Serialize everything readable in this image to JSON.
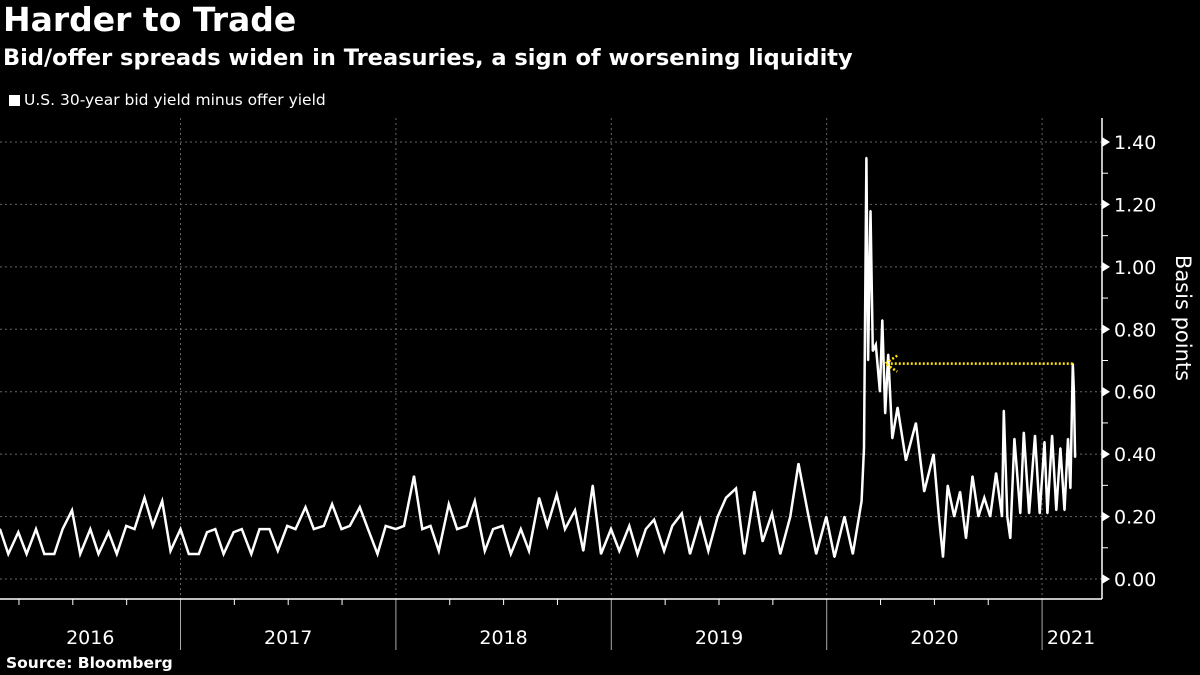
{
  "chart_data": {
    "type": "line",
    "title": "Harder to Trade",
    "subtitle": "Bid/offer spreads widen in Treasuries, a sign of worsening liquidity",
    "legend": [
      "U.S. 30-year bid yield minus offer yield"
    ],
    "legend_placement": "top-left",
    "ylabel": "Basis points",
    "ylim": [
      0,
      1.4
    ],
    "yticks": [
      "0.00",
      "0.20",
      "0.40",
      "0.60",
      "0.80",
      "1.00",
      "1.20",
      "1.40"
    ],
    "xticks": [
      "2016",
      "2017",
      "2018",
      "2019",
      "2020",
      "2021"
    ],
    "xlim": [
      "2016-02-28",
      "2021-03-15"
    ],
    "grid": true,
    "y_axis_side": "right",
    "colors": {
      "background": "#000000",
      "line": "#ffffff",
      "annotation": "#ffe600",
      "grid": "#666666"
    },
    "series": [
      {
        "name": "U.S. 30-year bid yield minus offer yield",
        "dates": [
          "2016-03-01",
          "2016-03-15",
          "2016-04-01",
          "2016-04-15",
          "2016-05-01",
          "2016-05-15",
          "2016-06-01",
          "2016-06-15",
          "2016-07-01",
          "2016-07-15",
          "2016-08-01",
          "2016-08-15",
          "2016-09-01",
          "2016-09-15",
          "2016-10-01",
          "2016-10-15",
          "2016-11-01",
          "2016-11-15",
          "2016-12-01",
          "2016-12-15",
          "2017-01-01",
          "2017-01-15",
          "2017-02-01",
          "2017-02-15",
          "2017-03-01",
          "2017-03-15",
          "2017-04-01",
          "2017-04-15",
          "2017-05-01",
          "2017-05-15",
          "2017-06-01",
          "2017-06-15",
          "2017-07-01",
          "2017-07-15",
          "2017-08-01",
          "2017-08-15",
          "2017-09-01",
          "2017-09-15",
          "2017-10-01",
          "2017-10-15",
          "2017-11-01",
          "2017-11-15",
          "2017-12-01",
          "2017-12-15",
          "2018-01-01",
          "2018-01-15",
          "2018-02-01",
          "2018-02-15",
          "2018-03-01",
          "2018-03-15",
          "2018-04-01",
          "2018-04-15",
          "2018-05-01",
          "2018-05-15",
          "2018-06-01",
          "2018-06-15",
          "2018-07-01",
          "2018-07-15",
          "2018-08-01",
          "2018-08-15",
          "2018-09-01",
          "2018-09-15",
          "2018-10-01",
          "2018-10-15",
          "2018-11-01",
          "2018-11-15",
          "2018-12-01",
          "2018-12-15",
          "2019-01-01",
          "2019-01-15",
          "2019-02-01",
          "2019-02-15",
          "2019-03-01",
          "2019-03-15",
          "2019-04-01",
          "2019-04-15",
          "2019-05-01",
          "2019-05-15",
          "2019-06-01",
          "2019-06-15",
          "2019-07-01",
          "2019-07-15",
          "2019-08-01",
          "2019-08-15",
          "2019-09-01",
          "2019-09-15",
          "2019-10-01",
          "2019-10-15",
          "2019-11-01",
          "2019-11-15",
          "2019-12-01",
          "2019-12-15",
          "2020-01-01",
          "2020-01-15",
          "2020-02-01",
          "2020-02-15",
          "2020-03-01",
          "2020-03-05",
          "2020-03-09",
          "2020-03-12",
          "2020-03-16",
          "2020-03-20",
          "2020-03-25",
          "2020-04-01",
          "2020-04-05",
          "2020-04-10",
          "2020-04-15",
          "2020-04-22",
          "2020-05-01",
          "2020-05-15",
          "2020-06-01",
          "2020-06-15",
          "2020-07-01",
          "2020-07-10",
          "2020-07-17",
          "2020-07-25",
          "2020-08-05",
          "2020-08-15",
          "2020-08-25",
          "2020-09-05",
          "2020-09-15",
          "2020-09-25",
          "2020-10-05",
          "2020-10-15",
          "2020-10-25",
          "2020-10-28",
          "2020-11-03",
          "2020-11-08",
          "2020-11-15",
          "2020-11-25",
          "2020-12-01",
          "2020-12-10",
          "2020-12-20",
          "2020-12-28",
          "2021-01-05",
          "2021-01-10",
          "2021-01-18",
          "2021-01-25",
          "2021-02-01",
          "2021-02-08",
          "2021-02-14",
          "2021-02-18",
          "2021-02-22",
          "2021-02-24",
          "2021-02-26"
        ],
        "values": [
          0.16,
          0.08,
          0.15,
          0.08,
          0.16,
          0.08,
          0.08,
          0.16,
          0.22,
          0.08,
          0.16,
          0.08,
          0.15,
          0.08,
          0.17,
          0.16,
          0.26,
          0.17,
          0.25,
          0.09,
          0.16,
          0.08,
          0.08,
          0.15,
          0.16,
          0.08,
          0.15,
          0.16,
          0.08,
          0.16,
          0.16,
          0.09,
          0.17,
          0.16,
          0.23,
          0.16,
          0.17,
          0.24,
          0.16,
          0.17,
          0.23,
          0.16,
          0.08,
          0.17,
          0.16,
          0.17,
          0.33,
          0.16,
          0.17,
          0.09,
          0.24,
          0.16,
          0.17,
          0.25,
          0.09,
          0.16,
          0.17,
          0.08,
          0.16,
          0.09,
          0.26,
          0.17,
          0.27,
          0.16,
          0.22,
          0.09,
          0.3,
          0.08,
          0.16,
          0.09,
          0.17,
          0.08,
          0.16,
          0.19,
          0.09,
          0.17,
          0.21,
          0.08,
          0.19,
          0.09,
          0.2,
          0.26,
          0.29,
          0.08,
          0.28,
          0.12,
          0.21,
          0.08,
          0.2,
          0.37,
          0.21,
          0.08,
          0.2,
          0.07,
          0.2,
          0.08,
          0.25,
          0.42,
          1.35,
          0.7,
          1.18,
          0.73,
          0.75,
          0.6,
          0.83,
          0.53,
          0.72,
          0.45,
          0.55,
          0.38,
          0.5,
          0.28,
          0.4,
          0.2,
          0.07,
          0.3,
          0.2,
          0.28,
          0.13,
          0.33,
          0.2,
          0.26,
          0.2,
          0.34,
          0.2,
          0.54,
          0.2,
          0.13,
          0.45,
          0.21,
          0.47,
          0.21,
          0.46,
          0.21,
          0.44,
          0.21,
          0.46,
          0.22,
          0.42,
          0.22,
          0.45,
          0.29,
          0.69,
          0.6,
          0.39
        ]
      }
    ],
    "annotations": [
      {
        "type": "dotted-arrow",
        "value": 0.69,
        "from": "2021-02-22",
        "to": "2020-04-10",
        "color": "#ffe600"
      }
    ]
  },
  "source": "Source: Bloomberg"
}
